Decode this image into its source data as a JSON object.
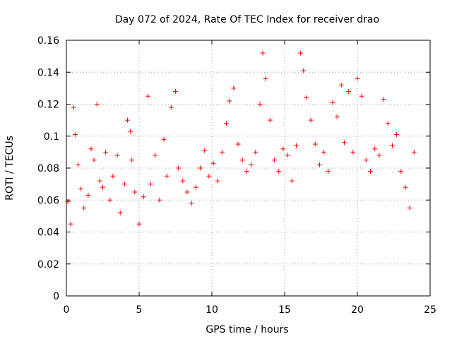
{
  "chart_data": {
    "type": "scatter",
    "title": "Day 072 of 2024, Rate Of TEC Index for receiver drao",
    "xlabel": "GPS time / hours",
    "ylabel": "ROTI / TECUs",
    "xlim": [
      0,
      25
    ],
    "ylim": [
      0,
      0.16
    ],
    "x_ticks": [
      "0",
      "5",
      "10",
      "15",
      "20",
      "25"
    ],
    "y_ticks": [
      "0",
      "0.02",
      "0.04",
      "0.06",
      "0.08",
      "0.1",
      "0.12",
      "0.14",
      "0.16"
    ],
    "grid": true,
    "marker": "+",
    "color": "#ff0000",
    "series": [
      {
        "x": [
          0.1,
          0.3,
          0.5,
          0.6,
          0.8,
          1.0,
          1.2,
          1.5,
          1.7,
          1.9,
          2.1,
          2.3,
          2.5,
          2.7,
          3.0,
          3.2,
          3.5,
          3.7,
          4.0,
          4.2,
          4.4,
          4.5,
          4.7,
          5.0,
          5.3,
          5.6,
          5.8,
          6.1,
          6.4,
          6.7,
          6.9,
          7.2,
          7.5,
          7.7,
          8.0,
          8.3,
          8.6,
          8.9,
          9.2,
          9.5,
          9.8,
          10.1,
          10.4,
          10.7,
          11.0,
          11.2,
          11.5,
          11.8,
          12.1,
          12.4,
          12.7,
          13.0,
          13.3,
          13.5,
          13.7,
          14.0,
          14.3,
          14.6,
          14.9,
          15.2,
          15.5,
          15.8,
          16.1,
          16.3,
          16.5,
          16.8,
          17.1,
          17.4,
          17.7,
          18.0,
          18.3,
          18.6,
          18.9,
          19.1,
          19.4,
          19.7,
          20.0,
          20.3,
          20.6,
          20.9,
          21.2,
          21.5,
          21.8,
          22.1,
          22.4,
          22.7,
          23.0,
          23.3,
          23.6,
          23.9
        ],
        "y": [
          0.059,
          0.045,
          0.118,
          0.101,
          0.082,
          0.067,
          0.055,
          0.063,
          0.092,
          0.085,
          0.12,
          0.072,
          0.068,
          0.09,
          0.06,
          0.075,
          0.088,
          0.052,
          0.07,
          0.11,
          0.103,
          0.085,
          0.065,
          0.045,
          0.062,
          0.125,
          0.07,
          0.088,
          0.06,
          0.098,
          0.075,
          0.118,
          0.128,
          0.08,
          0.072,
          0.065,
          0.058,
          0.068,
          0.08,
          0.091,
          0.075,
          0.083,
          0.072,
          0.09,
          0.108,
          0.122,
          0.13,
          0.095,
          0.085,
          0.078,
          0.082,
          0.09,
          0.12,
          0.152,
          0.136,
          0.11,
          0.085,
          0.078,
          0.092,
          0.088,
          0.072,
          0.094,
          0.152,
          0.141,
          0.124,
          0.11,
          0.095,
          0.082,
          0.09,
          0.078,
          0.121,
          0.112,
          0.132,
          0.096,
          0.128,
          0.09,
          0.136,
          0.125,
          0.085,
          0.078,
          0.092,
          0.088,
          0.123,
          0.108,
          0.094,
          0.101,
          0.078,
          0.068,
          0.055,
          0.09
        ]
      }
    ]
  }
}
